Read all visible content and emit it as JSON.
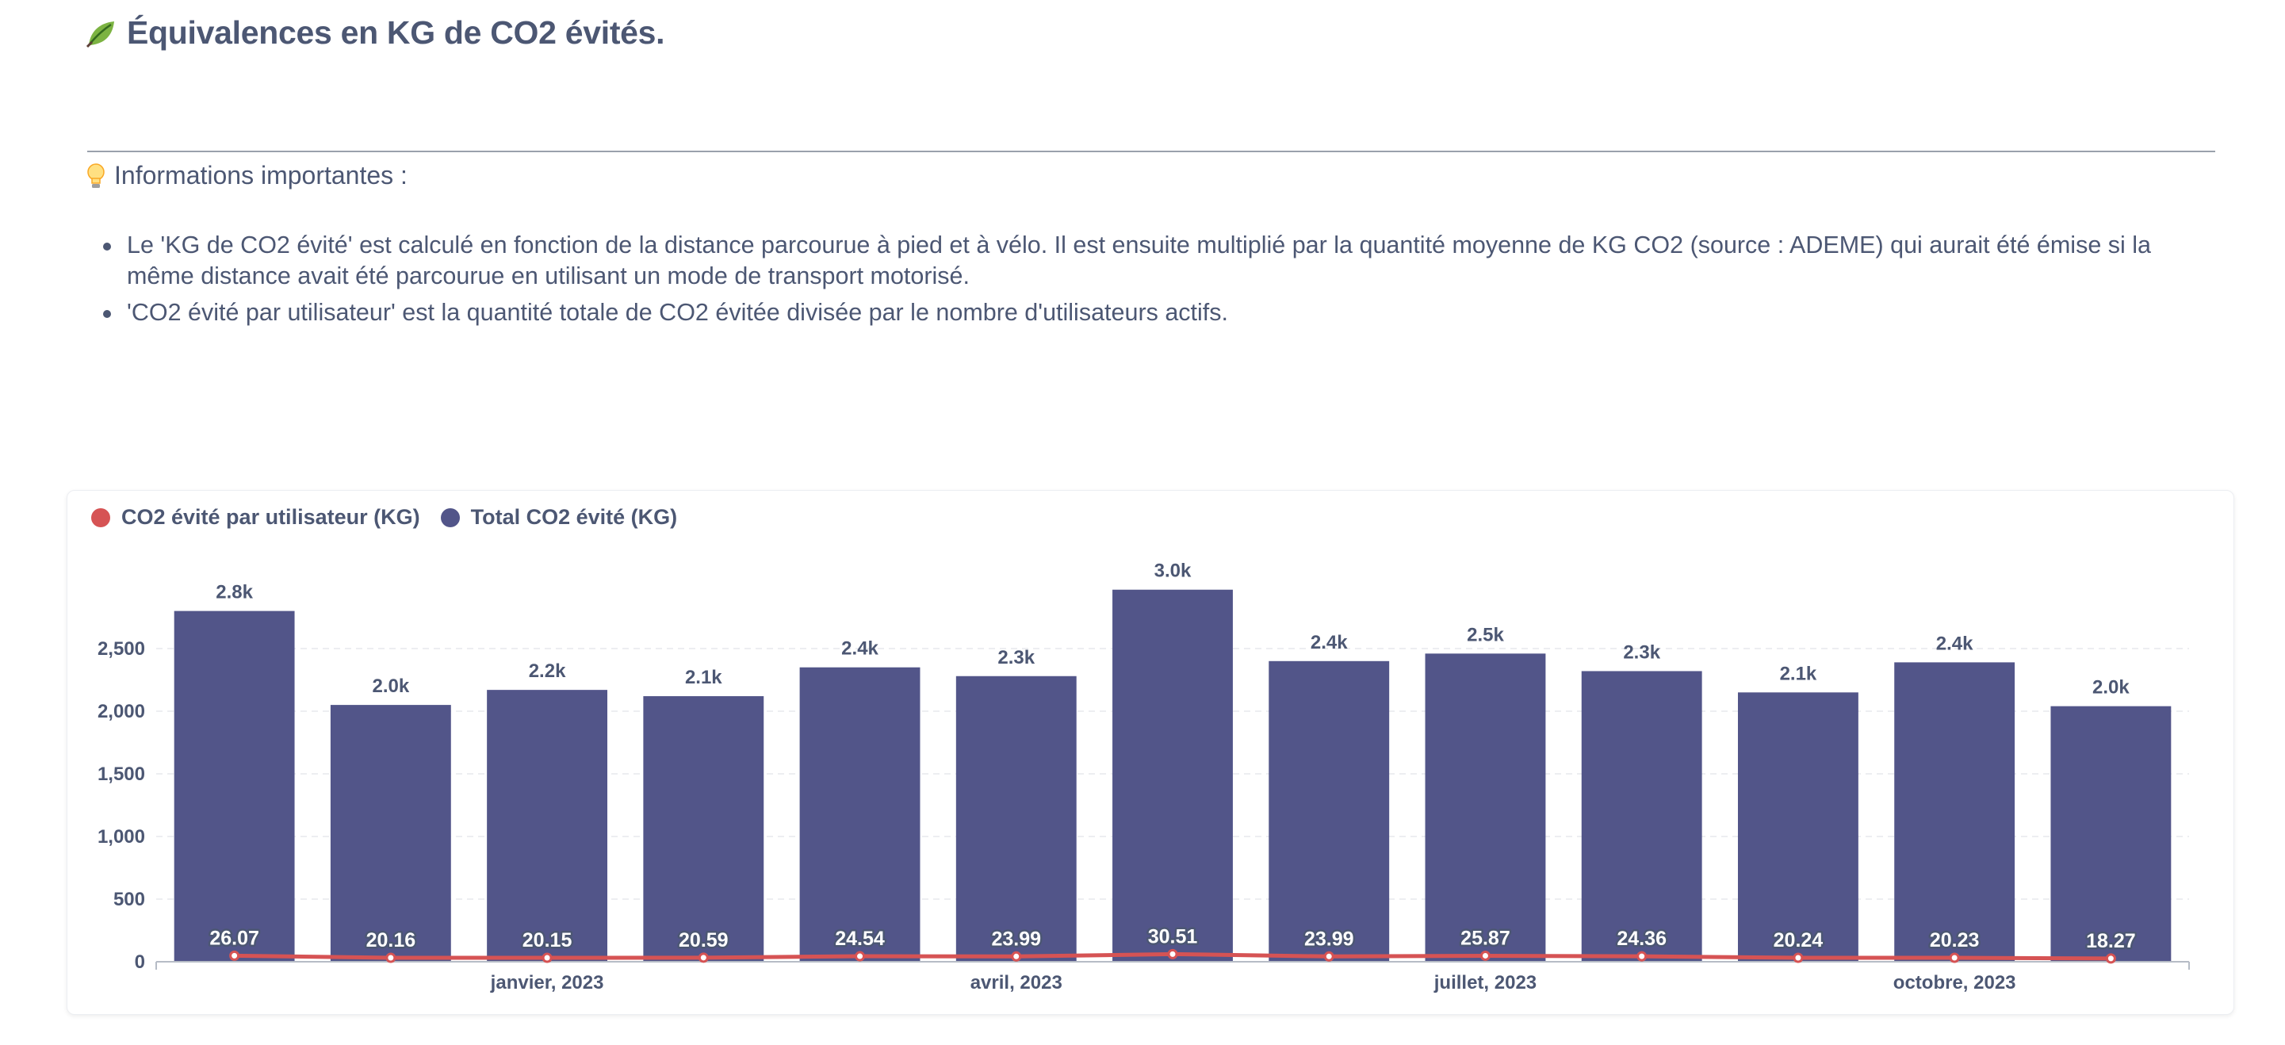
{
  "header": {
    "title": "Équivalences en KG de CO2 évités.",
    "icon": "leaf-icon"
  },
  "info": {
    "heading": "Informations importantes :",
    "icon": "lightbulb-icon",
    "bullets": [
      "Le 'KG de CO2 évité' est calculé en fonction de la distance parcourue à pied et à vélo. Il est ensuite multiplié par la quantité moyenne de KG CO2 (source : ADEME) qui aurait été émise si la même distance avait été parcourue en utilisant un mode de transport motorisé.",
      "'CO2 évité par utilisateur' est la quantité totale de CO2 évitée divisée par le nombre d'utilisateurs actifs."
    ]
  },
  "colors": {
    "bar": "#525589",
    "line": "#d65354",
    "text": "#4c5773",
    "grid": "#edeef1"
  },
  "chart_data": {
    "type": "bar",
    "title": "",
    "xlabel": "",
    "ylabel": "",
    "ylim": [
      0,
      3000
    ],
    "yticks": [
      0,
      500,
      1000,
      1500,
      2000,
      2500
    ],
    "ytick_labels": [
      "0",
      "500",
      "1,000",
      "1,500",
      "2,000",
      "2,500"
    ],
    "x_tick_labels": [
      {
        "index": 2,
        "label": "janvier, 2023"
      },
      {
        "index": 5,
        "label": "avril, 2023"
      },
      {
        "index": 8,
        "label": "juillet, 2023"
      },
      {
        "index": 11,
        "label": "octobre, 2023"
      }
    ],
    "legend": [
      "CO2 évité par utilisateur (KG)",
      "Total CO2 évité (KG)"
    ],
    "series": [
      {
        "name": "Total CO2 évité (KG)",
        "type": "bar",
        "values": [
          2800,
          2050,
          2170,
          2120,
          2350,
          2280,
          2970,
          2400,
          2460,
          2320,
          2150,
          2390,
          2040
        ],
        "labels": [
          "2.8k",
          "2.0k",
          "2.2k",
          "2.1k",
          "2.4k",
          "2.3k",
          "3.0k",
          "2.4k",
          "2.5k",
          "2.3k",
          "2.1k",
          "2.4k",
          "2.0k"
        ]
      },
      {
        "name": "CO2 évité par utilisateur (KG)",
        "type": "line",
        "values": [
          26.07,
          20.16,
          20.15,
          20.59,
          24.54,
          23.99,
          30.51,
          23.99,
          25.87,
          24.36,
          20.24,
          20.23,
          18.27
        ],
        "labels": [
          "26.07",
          "20.16",
          "20.15",
          "20.59",
          "24.54",
          "23.99",
          "30.51",
          "23.99",
          "25.87",
          "24.36",
          "20.24",
          "20.23",
          "18.27"
        ]
      }
    ]
  }
}
